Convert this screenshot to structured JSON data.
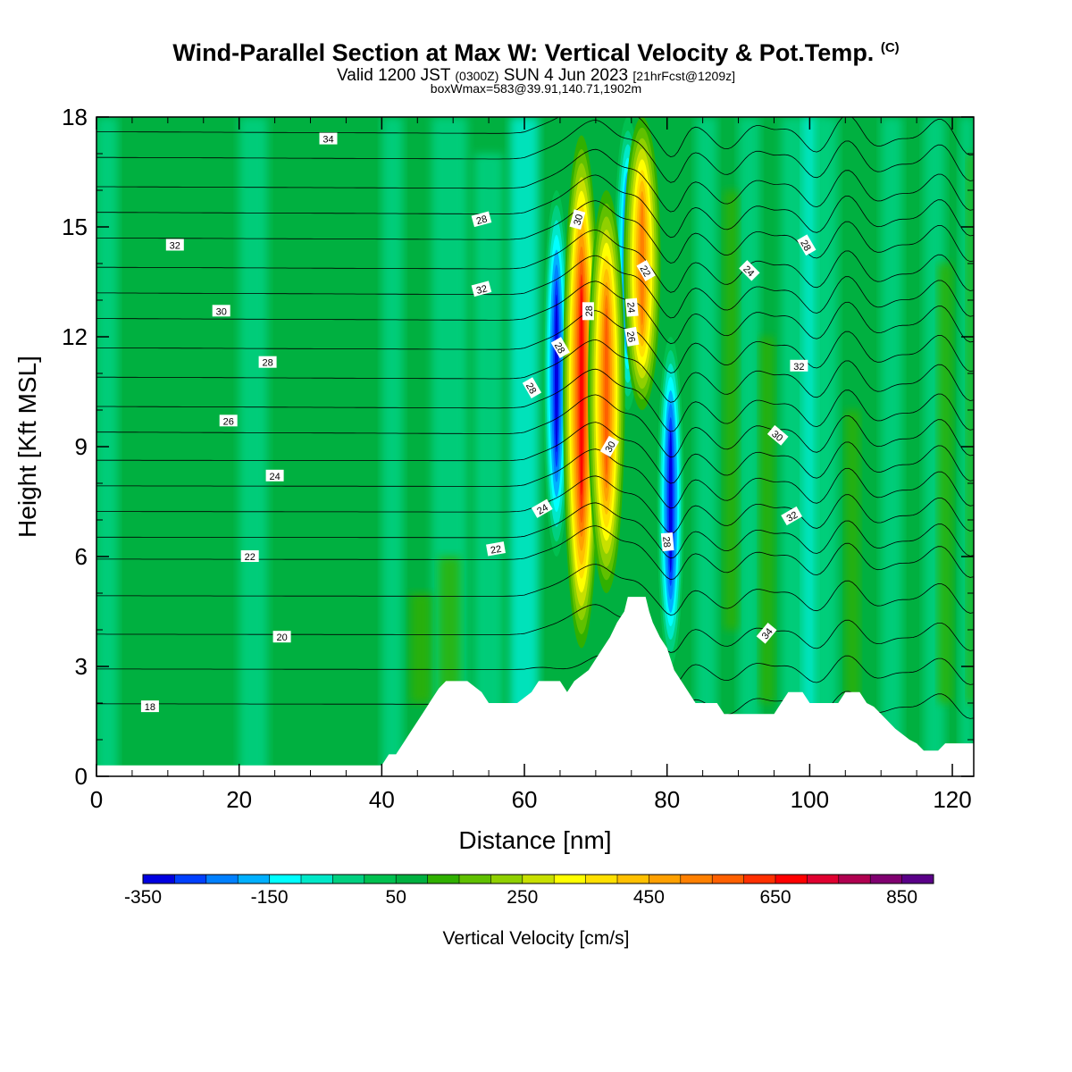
{
  "header": {
    "title": "Wind-Parallel Section at Max W: Vertical Velocity & Pot.Temp.",
    "copyright": "(C)",
    "valid_prefix": "Valid 1200 JST",
    "valid_z": "(0300Z)",
    "valid_date": "SUN 4 Jun 2023",
    "forecast": "[21hrFcst@1209z]",
    "boxinfo": "boxWmax=583@39.91,140.71,1902m"
  },
  "chart_data": {
    "type": "heatmap",
    "xlabel": "Distance [nm]",
    "ylabel": "Height [Kft MSL]",
    "xlim": [
      0,
      123
    ],
    "ylim": [
      0,
      18
    ],
    "x_ticks": [
      0,
      20,
      40,
      60,
      80,
      100,
      120
    ],
    "y_ticks": [
      0,
      3,
      6,
      9,
      12,
      15,
      18
    ],
    "colorbar": {
      "label": "Vertical Velocity [cm/s]",
      "min": -350,
      "max": 900,
      "step": 50,
      "tick_labels": [
        -350,
        -150,
        50,
        250,
        450,
        650,
        850
      ],
      "colors": [
        "#0000e0",
        "#0040ff",
        "#0080ff",
        "#00b0ff",
        "#00ffff",
        "#00e8c8",
        "#00d080",
        "#00c050",
        "#00b040",
        "#30b000",
        "#60c000",
        "#90d000",
        "#c8e000",
        "#ffff00",
        "#ffe000",
        "#ffc000",
        "#ffa000",
        "#ff8000",
        "#ff6000",
        "#ff3000",
        "#ff0000",
        "#e00030",
        "#b00050",
        "#800070",
        "#5a0088"
      ]
    },
    "terrain_kft": [
      [
        0,
        0.3
      ],
      [
        40,
        0.3
      ],
      [
        41,
        0.6
      ],
      [
        42,
        0.6
      ],
      [
        43,
        0.9
      ],
      [
        44,
        1.2
      ],
      [
        45,
        1.5
      ],
      [
        46,
        1.8
      ],
      [
        47,
        2.1
      ],
      [
        48,
        2.4
      ],
      [
        49,
        2.6
      ],
      [
        52,
        2.6
      ],
      [
        54,
        2.3
      ],
      [
        55,
        2.0
      ],
      [
        59,
        2.0
      ],
      [
        61,
        2.3
      ],
      [
        62,
        2.6
      ],
      [
        65,
        2.6
      ],
      [
        66,
        2.3
      ],
      [
        67,
        2.6
      ],
      [
        69,
        2.9
      ],
      [
        70,
        3.2
      ],
      [
        71,
        3.5
      ],
      [
        72,
        3.8
      ],
      [
        73,
        4.2
      ],
      [
        74,
        4.5
      ],
      [
        74.5,
        4.9
      ],
      [
        77,
        4.9
      ],
      [
        77.5,
        4.5
      ],
      [
        78,
        4.2
      ],
      [
        79,
        3.8
      ],
      [
        80,
        3.5
      ],
      [
        80.5,
        3.2
      ],
      [
        81,
        2.9
      ],
      [
        82,
        2.6
      ],
      [
        83,
        2.3
      ],
      [
        84,
        2.0
      ],
      [
        87,
        2.0
      ],
      [
        88,
        1.7
      ],
      [
        95,
        1.7
      ],
      [
        96,
        2.0
      ],
      [
        97,
        2.3
      ],
      [
        99,
        2.3
      ],
      [
        100,
        2.0
      ],
      [
        104,
        2.0
      ],
      [
        105,
        2.3
      ],
      [
        107,
        2.3
      ],
      [
        108,
        2.0
      ],
      [
        109,
        1.9
      ],
      [
        110,
        1.7
      ],
      [
        111,
        1.5
      ],
      [
        112,
        1.3
      ],
      [
        114,
        1.0
      ],
      [
        115,
        0.9
      ],
      [
        116,
        0.7
      ],
      [
        118,
        0.7
      ],
      [
        119,
        0.9
      ],
      [
        123,
        0.9
      ]
    ],
    "updrafts": [
      {
        "x": 68,
        "y_range": [
          3.5,
          17.5
        ],
        "w": 620
      },
      {
        "x": 71.5,
        "y_range": [
          5,
          16
        ],
        "w": 500
      },
      {
        "x": 76.5,
        "y_range": [
          10,
          18
        ],
        "w": 450
      }
    ],
    "downdrafts": [
      {
        "x": 64.5,
        "y_range": [
          6,
          16
        ],
        "w": -300
      },
      {
        "x": 74.5,
        "y_range": [
          10,
          18
        ],
        "w": -280
      },
      {
        "x": 80.5,
        "y_range": [
          3,
          12
        ],
        "w": -300
      }
    ],
    "theta_label_text": [
      "18",
      "20",
      "22",
      "24",
      "26",
      "28",
      "30",
      "32",
      "34",
      "24",
      "22",
      "28",
      "28",
      "30",
      "32",
      "28",
      "30",
      "28",
      "26",
      "24",
      "22",
      "28",
      "30",
      "32",
      "34",
      "32",
      "24",
      "28"
    ]
  }
}
